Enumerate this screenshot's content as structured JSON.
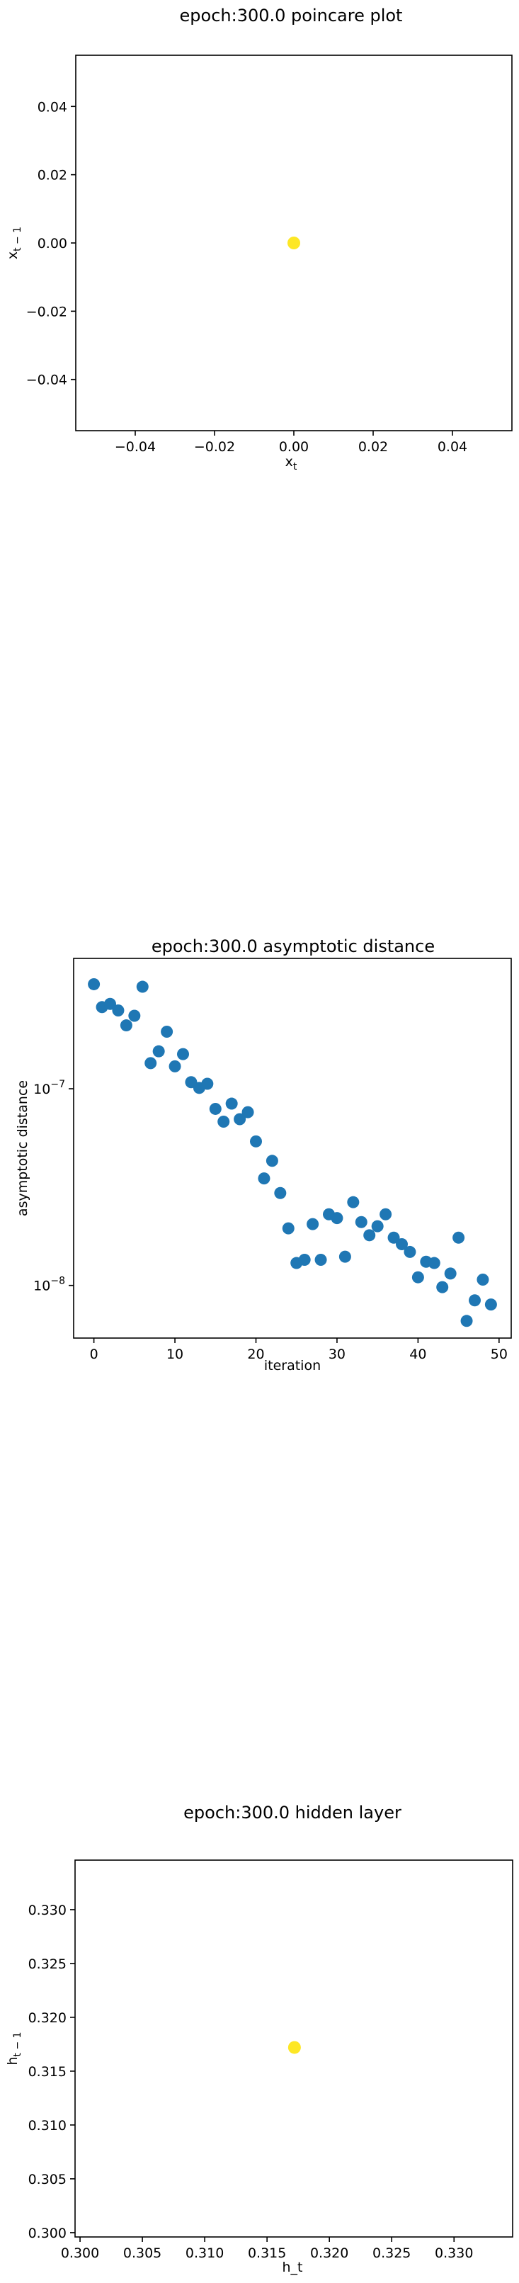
{
  "chart_data": [
    {
      "type": "scatter",
      "title": "epoch:300.0 poincare plot",
      "xlabel": "x_t",
      "ylabel": "x_{t-1}",
      "xlim": [
        -0.055,
        0.055
      ],
      "ylim": [
        -0.055,
        0.055
      ],
      "x_ticks": [
        -0.04,
        -0.02,
        0.0,
        0.02,
        0.04
      ],
      "x_tick_labels": [
        "−0.04",
        "−0.02",
        "0.00",
        "0.02",
        "0.04"
      ],
      "y_ticks": [
        -0.04,
        -0.02,
        0.0,
        0.02,
        0.04
      ],
      "y_tick_labels": [
        "−0.04",
        "−0.02",
        "0.00",
        "0.02",
        "0.04"
      ],
      "grid": false,
      "point_color": "#fde725",
      "points": [
        {
          "x": 0.0,
          "y": 0.0
        }
      ]
    },
    {
      "type": "scatter",
      "title": "epoch:300.0 asymptotic distance",
      "xlabel": "iteration",
      "ylabel": "asymptotic distance",
      "xlim": [
        -2.5,
        51.5
      ],
      "ylim": [
        5.4e-09,
        4.6e-07
      ],
      "yscale": "log",
      "x_ticks": [
        0,
        10,
        20,
        30,
        40,
        50
      ],
      "x_tick_labels": [
        "0",
        "10",
        "20",
        "30",
        "40",
        "50"
      ],
      "y_ticks": [
        1e-08,
        1e-07
      ],
      "y_tick_labels": [
        "10−8",
        "10−7"
      ],
      "grid": false,
      "point_color": "#1f77b4",
      "x": [
        0,
        1,
        2,
        3,
        4,
        5,
        6,
        7,
        8,
        9,
        10,
        11,
        12,
        13,
        14,
        15,
        16,
        17,
        18,
        19,
        20,
        21,
        22,
        23,
        24,
        25,
        26,
        27,
        28,
        29,
        30,
        31,
        32,
        33,
        34,
        35,
        36,
        37,
        38,
        39,
        40,
        41,
        42,
        43,
        44,
        45,
        46,
        47,
        48,
        49
      ],
      "y": [
        3.4e-07,
        2.6e-07,
        2.7e-07,
        2.5e-07,
        2.1e-07,
        2.35e-07,
        3.3e-07,
        1.35e-07,
        1.55e-07,
        1.95e-07,
        1.3e-07,
        1.5e-07,
        1.08e-07,
        1.01e-07,
        1.06e-07,
        7.9e-08,
        6.8e-08,
        8.4e-08,
        7e-08,
        7.6e-08,
        5.4e-08,
        3.5e-08,
        4.3e-08,
        2.95e-08,
        1.95e-08,
        1.3e-08,
        1.35e-08,
        2.05e-08,
        1.35e-08,
        2.3e-08,
        2.2e-08,
        1.4e-08,
        2.65e-08,
        2.1e-08,
        1.8e-08,
        2e-08,
        2.3e-08,
        1.75e-08,
        1.62e-08,
        1.48e-08,
        1.1e-08,
        1.32e-08,
        1.3e-08,
        9.8e-09,
        1.15e-08,
        1.75e-08,
        6.6e-09,
        8.4e-09,
        1.07e-08,
        8e-09
      ]
    },
    {
      "type": "scatter",
      "title": "epoch:300.0 hidden layer",
      "xlabel": "h_t",
      "ylabel": "h_{t-1}",
      "xlim": [
        0.2996,
        0.3347
      ],
      "ylim": [
        0.2996,
        0.3346
      ],
      "x_ticks": [
        0.3,
        0.305,
        0.31,
        0.315,
        0.32,
        0.325,
        0.33
      ],
      "x_tick_labels": [
        "0.300",
        "0.305",
        "0.310",
        "0.315",
        "0.320",
        "0.325",
        "0.330"
      ],
      "y_ticks": [
        0.3,
        0.305,
        0.31,
        0.315,
        0.32,
        0.325,
        0.33
      ],
      "y_tick_labels": [
        "0.300",
        "0.305",
        "0.310",
        "0.315",
        "0.320",
        "0.325",
        "0.330"
      ],
      "grid": false,
      "point_color": "#fde725",
      "points": [
        {
          "x": 0.3172,
          "y": 0.3172
        }
      ]
    }
  ]
}
